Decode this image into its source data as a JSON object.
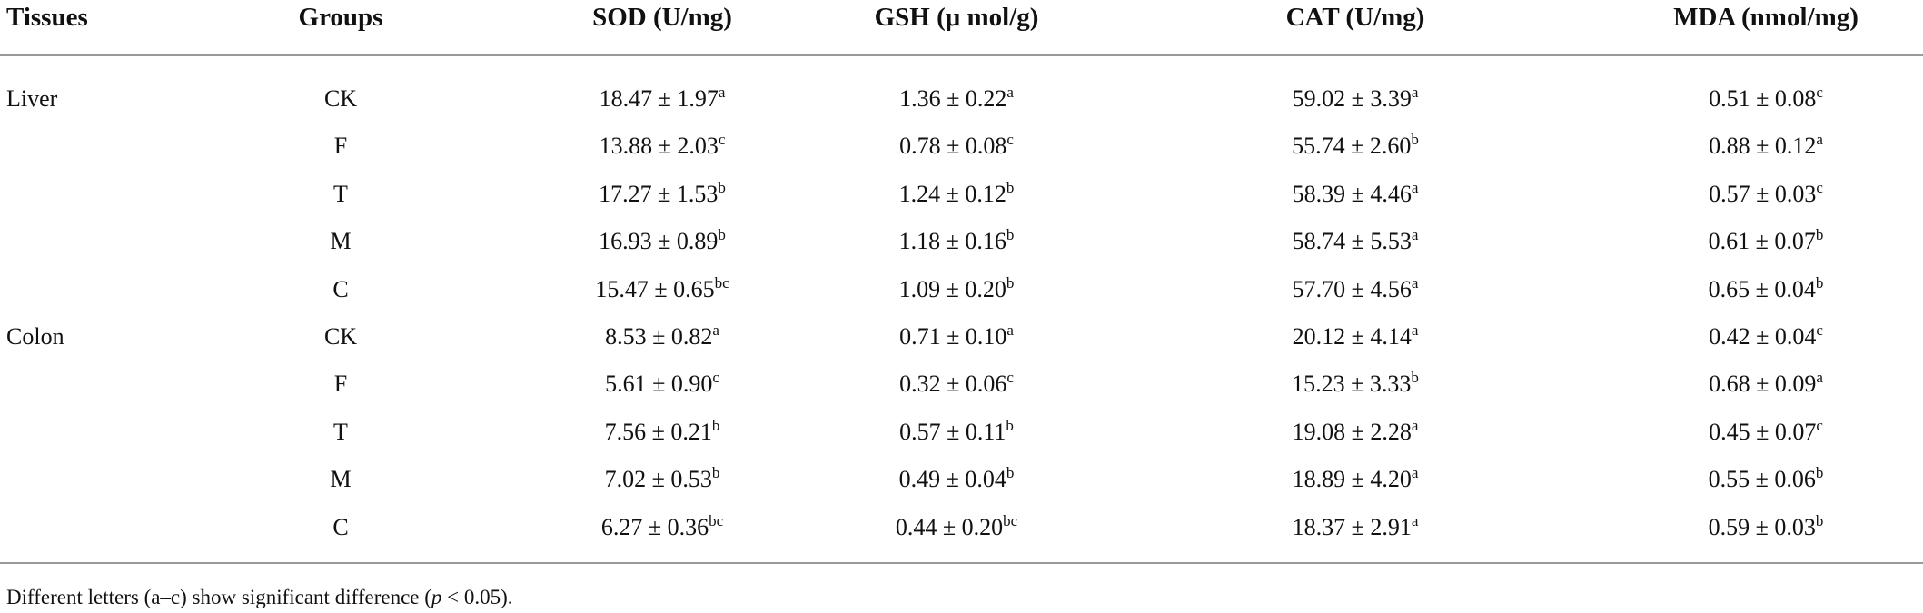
{
  "table": {
    "header": [
      "Tissues",
      "Groups",
      "SOD (U/mg)",
      "GSH (μ mol/g)",
      "CAT (U/mg)",
      "MDA (nmol/mg)"
    ],
    "tissues": [
      {
        "name": "Liver",
        "rows": [
          {
            "group": "CK",
            "cells": [
              {
                "text": "18.47 ± 1.97",
                "sup": "a"
              },
              {
                "text": "1.36 ± 0.22",
                "sup": "a"
              },
              {
                "text": "59.02 ± 3.39",
                "sup": "a"
              },
              {
                "text": "0.51 ± 0.08",
                "sup": "c"
              }
            ]
          },
          {
            "group": "F",
            "cells": [
              {
                "text": "13.88 ± 2.03",
                "sup": "c"
              },
              {
                "text": "0.78 ± 0.08",
                "sup": "c"
              },
              {
                "text": "55.74 ± 2.60",
                "sup": "b"
              },
              {
                "text": "0.88 ± 0.12",
                "sup": "a"
              }
            ]
          },
          {
            "group": "T",
            "cells": [
              {
                "text": "17.27 ± 1.53",
                "sup": "b"
              },
              {
                "text": "1.24 ± 0.12",
                "sup": "b"
              },
              {
                "text": "58.39 ± 4.46",
                "sup": "a"
              },
              {
                "text": "0.57 ± 0.03",
                "sup": "c"
              }
            ]
          },
          {
            "group": "M",
            "cells": [
              {
                "text": "16.93 ± 0.89",
                "sup": "b"
              },
              {
                "text": "1.18 ± 0.16",
                "sup": "b"
              },
              {
                "text": "58.74 ± 5.53",
                "sup": "a"
              },
              {
                "text": "0.61 ± 0.07",
                "sup": "b"
              }
            ]
          },
          {
            "group": "C",
            "cells": [
              {
                "text": "15.47 ± 0.65",
                "sup": "bc"
              },
              {
                "text": "1.09 ± 0.20",
                "sup": "b"
              },
              {
                "text": "57.70 ± 4.56",
                "sup": "a"
              },
              {
                "text": "0.65 ± 0.04",
                "sup": "b"
              }
            ]
          }
        ]
      },
      {
        "name": "Colon",
        "rows": [
          {
            "group": "CK",
            "cells": [
              {
                "text": "8.53 ± 0.82",
                "sup": "a"
              },
              {
                "text": "0.71 ± 0.10",
                "sup": "a"
              },
              {
                "text": "20.12 ± 4.14",
                "sup": "a"
              },
              {
                "text": "0.42 ± 0.04",
                "sup": "c"
              }
            ]
          },
          {
            "group": "F",
            "cells": [
              {
                "text": "5.61 ± 0.90",
                "sup": "c"
              },
              {
                "text": "0.32 ± 0.06",
                "sup": "c"
              },
              {
                "text": "15.23 ± 3.33",
                "sup": "b"
              },
              {
                "text": "0.68 ± 0.09",
                "sup": "a"
              }
            ]
          },
          {
            "group": "T",
            "cells": [
              {
                "text": "7.56 ± 0.21",
                "sup": "b"
              },
              {
                "text": "0.57 ± 0.11",
                "sup": "b"
              },
              {
                "text": "19.08 ± 2.28",
                "sup": "a"
              },
              {
                "text": "0.45 ± 0.07",
                "sup": "c"
              }
            ]
          },
          {
            "group": "M",
            "cells": [
              {
                "text": "7.02 ± 0.53",
                "sup": "b"
              },
              {
                "text": "0.49 ± 0.04",
                "sup": "b"
              },
              {
                "text": "18.89 ± 4.20",
                "sup": "a"
              },
              {
                "text": "0.55 ± 0.06",
                "sup": "b"
              }
            ]
          },
          {
            "group": "C",
            "cells": [
              {
                "text": "6.27 ± 0.36",
                "sup": "bc"
              },
              {
                "text": "0.44 ± 0.20",
                "sup": "bc"
              },
              {
                "text": "18.37 ± 2.91",
                "sup": "a"
              },
              {
                "text": "0.59 ± 0.03",
                "sup": "b"
              }
            ]
          }
        ]
      }
    ]
  },
  "footnote": {
    "before": "Different letters (a–c) show significant difference (",
    "italic": "p",
    "after": " < 0.05)."
  }
}
